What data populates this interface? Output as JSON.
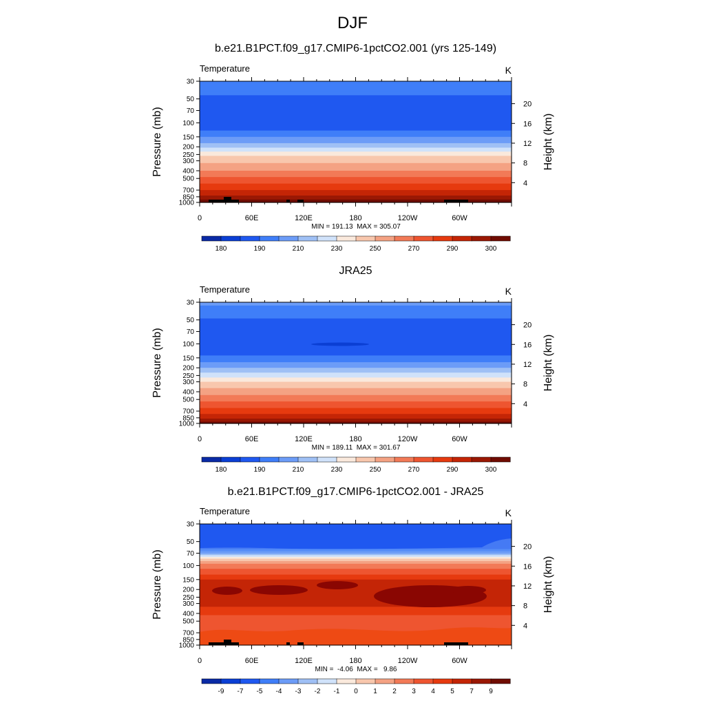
{
  "figure": {
    "title": "DJF"
  },
  "chart_data": [
    {
      "type": "heatmap",
      "title": "b.e21.B1PCT.f09_g17.CMIP6-1pctCO2.001 (yrs 125-149)",
      "left_label": "Temperature",
      "units": "K",
      "ylabel": "Pressure (mb)",
      "ylabel_right": "Height (km)",
      "y_ticks": [
        "30",
        "50",
        "70",
        "100",
        "150",
        "200",
        "250",
        "300",
        "400",
        "500",
        "700",
        "850",
        "1000"
      ],
      "y_right_ticks": [
        "4",
        "8",
        "12",
        "16",
        "20"
      ],
      "x_ticks": [
        "0",
        "60E",
        "120E",
        "180",
        "120W",
        "60W"
      ],
      "stats": "MIN = 191.13  MAX = 305.07",
      "colorbar_labels": [
        "180",
        "190",
        "210",
        "230",
        "250",
        "270",
        "290",
        "300"
      ],
      "level_profile": [
        {
          "p": 30,
          "level": 4
        },
        {
          "p": 40,
          "level": 4
        },
        {
          "p": 45,
          "level": 3
        },
        {
          "p": 100,
          "level": 3
        },
        {
          "p": 125,
          "level": 4
        },
        {
          "p": 150,
          "level": 5
        },
        {
          "p": 180,
          "level": 6
        },
        {
          "p": 205,
          "level": 7
        },
        {
          "p": 230,
          "level": 8
        },
        {
          "p": 260,
          "level": 9
        },
        {
          "p": 320,
          "level": 10
        },
        {
          "p": 400,
          "level": 11
        },
        {
          "p": 480,
          "level": 12
        },
        {
          "p": 580,
          "level": 13
        },
        {
          "p": 700,
          "level": 14
        },
        {
          "p": 820,
          "level": 15
        },
        {
          "p": 920,
          "level": 16
        },
        {
          "p": 1000,
          "level": 16
        }
      ]
    },
    {
      "type": "heatmap",
      "title": "JRA25",
      "left_label": "Temperature",
      "units": "K",
      "ylabel": "Pressure (mb)",
      "ylabel_right": "Height (km)",
      "y_ticks": [
        "30",
        "50",
        "70",
        "100",
        "150",
        "200",
        "250",
        "300",
        "400",
        "500",
        "700",
        "850",
        "1000"
      ],
      "y_right_ticks": [
        "4",
        "8",
        "12",
        "16",
        "20"
      ],
      "x_ticks": [
        "0",
        "60E",
        "120E",
        "180",
        "120W",
        "60W"
      ],
      "stats": "MIN = 189.11  MAX = 301.67",
      "colorbar_labels": [
        "180",
        "190",
        "210",
        "230",
        "250",
        "270",
        "290",
        "300"
      ],
      "level_profile": [
        {
          "p": 30,
          "level": 5
        },
        {
          "p": 33,
          "level": 4
        },
        {
          "p": 48,
          "level": 3
        },
        {
          "p": 140,
          "level": 4
        },
        {
          "p": 170,
          "level": 5
        },
        {
          "p": 200,
          "level": 6
        },
        {
          "p": 230,
          "level": 7
        },
        {
          "p": 265,
          "level": 8
        },
        {
          "p": 300,
          "level": 9
        },
        {
          "p": 360,
          "level": 10
        },
        {
          "p": 440,
          "level": 11
        },
        {
          "p": 530,
          "level": 12
        },
        {
          "p": 640,
          "level": 13
        },
        {
          "p": 760,
          "level": 14
        },
        {
          "p": 870,
          "level": 15
        },
        {
          "p": 950,
          "level": 16
        },
        {
          "p": 1000,
          "level": 16
        }
      ]
    },
    {
      "type": "heatmap",
      "title": "b.e21.B1PCT.f09_g17.CMIP6-1pctCO2.001 - JRA25",
      "left_label": "Temperature",
      "units": "K",
      "ylabel": "Pressure (mb)",
      "ylabel_right": "Height (km)",
      "y_ticks": [
        "30",
        "50",
        "70",
        "100",
        "150",
        "200",
        "250",
        "300",
        "400",
        "500",
        "700",
        "850",
        "1000"
      ],
      "y_right_ticks": [
        "4",
        "8",
        "12",
        "16",
        "20"
      ],
      "x_ticks": [
        "0",
        "60E",
        "120E",
        "180",
        "120W",
        "60W"
      ],
      "stats": "MIN =  -4.06  MAX =   9.86",
      "colorbar_labels": [
        "-9",
        "-7",
        "-5",
        "-4",
        "-3",
        "-2",
        "-1",
        "0",
        "1",
        "2",
        "3",
        "4",
        "5",
        "7",
        "9"
      ],
      "level_profile": [
        {
          "p": 30,
          "level": 3
        },
        {
          "p": 62,
          "level": 4
        },
        {
          "p": 66,
          "level": 5
        },
        {
          "p": 70,
          "level": 6
        },
        {
          "p": 74,
          "level": 7
        },
        {
          "p": 78,
          "level": 8
        },
        {
          "p": 82,
          "level": 9
        },
        {
          "p": 88,
          "level": 10
        },
        {
          "p": 95,
          "level": 11
        },
        {
          "p": 110,
          "level": 12
        },
        {
          "p": 130,
          "level": 13
        },
        {
          "p": 150,
          "level": 14
        },
        {
          "p": 330,
          "level": 13
        },
        {
          "p": 420,
          "level": 12
        },
        {
          "p": 680,
          "level": 13
        },
        {
          "p": 1000,
          "level": 13
        }
      ]
    }
  ]
}
